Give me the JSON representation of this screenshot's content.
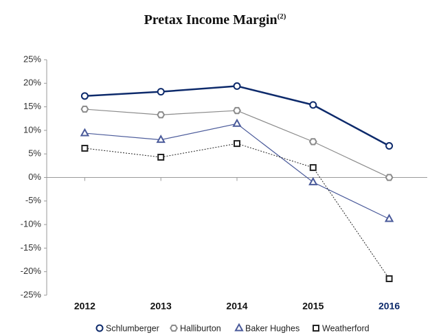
{
  "chart_data": {
    "type": "line",
    "title": "Pretax Income Margin",
    "title_superscript": "(2)",
    "categories": [
      "2012",
      "2013",
      "2014",
      "2015",
      "2016"
    ],
    "highlight_category": 4,
    "highlight_color": "#0d2a6b",
    "series": [
      {
        "name": "Schlumberger",
        "color": "#0d2a6b",
        "marker": "circle",
        "width": 2.5,
        "dashed": false,
        "values": [
          17.3,
          18.2,
          19.4,
          15.4,
          6.7
        ]
      },
      {
        "name": "Halliburton",
        "color": "#8a8a8a",
        "marker": "hexagon",
        "width": 1.2,
        "dashed": false,
        "values": [
          14.5,
          13.3,
          14.2,
          7.6,
          0
        ]
      },
      {
        "name": "Baker Hughes",
        "color": "#4a5a9a",
        "marker": "triangle",
        "width": 1.2,
        "dashed": false,
        "values": [
          9.4,
          8.0,
          11.4,
          -1.0,
          -8.8
        ]
      },
      {
        "name": "Weatherford",
        "color": "#222222",
        "marker": "square",
        "width": 1,
        "dashed": true,
        "values": [
          6.2,
          4.3,
          7.2,
          2.1,
          -21.5
        ]
      }
    ],
    "ylim": [
      -25,
      25
    ],
    "yticks": [
      {
        "value": -25,
        "label": "-25%"
      },
      {
        "value": -20,
        "label": "-20%"
      },
      {
        "value": -15,
        "label": "-15%"
      },
      {
        "value": -10,
        "label": "-10%"
      },
      {
        "value": -5,
        "label": "-5%"
      },
      {
        "value": 0,
        "label": "0%"
      },
      {
        "value": 5,
        "label": "5%"
      },
      {
        "value": 10,
        "label": "10%"
      },
      {
        "value": 15,
        "label": "15%"
      },
      {
        "value": 20,
        "label": "20%"
      },
      {
        "value": 25,
        "label": "25%"
      }
    ],
    "legend": "bottom"
  }
}
